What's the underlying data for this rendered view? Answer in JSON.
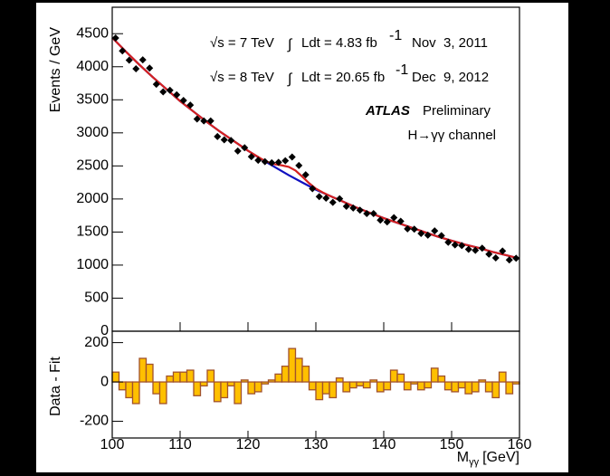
{
  "chart_data": {
    "type": "binned-fit",
    "ylabel": "Events / GeV",
    "ylabel2": "Data - Fit",
    "xlabel": {
      "main": "M",
      "sub": "γγ",
      "unit": "[GeV]"
    },
    "annotations": {
      "row1": {
        "energy": "√s = 7 TeV",
        "integral": "∫",
        "lumi": "Ldt = 4.83 fb",
        "lumi_exp": "-1",
        "date": "Nov  3, 2011"
      },
      "row2": {
        "energy": "√s = 8 TeV",
        "integral": "∫",
        "lumi": "Ldt = 20.65 fb",
        "lumi_exp": "-1",
        "date": "Dec  9, 2012"
      },
      "experiment": "ATLAS",
      "status": "Preliminary",
      "channel": "H→γγ channel"
    },
    "xlim": [
      100,
      160
    ],
    "xticks": [
      100,
      110,
      120,
      130,
      140,
      150,
      160
    ],
    "ylim": [
      0,
      4900
    ],
    "yticks": [
      0,
      500,
      1000,
      1500,
      2000,
      2500,
      3000,
      3500,
      4000,
      4500
    ],
    "y2lim": [
      -285,
      258
    ],
    "y2ticks": [
      -200,
      0,
      200
    ],
    "bins": [
      100,
      101,
      102,
      103,
      104,
      105,
      106,
      107,
      108,
      109,
      110,
      111,
      112,
      113,
      114,
      115,
      116,
      117,
      118,
      119,
      120,
      121,
      122,
      123,
      124,
      125,
      126,
      127,
      128,
      129,
      130,
      131,
      132,
      133,
      134,
      135,
      136,
      137,
      138,
      139,
      140,
      141,
      142,
      143,
      144,
      145,
      146,
      147,
      148,
      149,
      150,
      151,
      152,
      153,
      154,
      155,
      156,
      157,
      158,
      159,
      160
    ],
    "data": {
      "color": "#000000",
      "values": [
        4435,
        4240,
        4100,
        3970,
        4105,
        3980,
        3735,
        3620,
        3645,
        3575,
        3490,
        3420,
        3210,
        3180,
        3180,
        2945,
        2895,
        2885,
        2725,
        2775,
        2640,
        2585,
        2564,
        2548,
        2554,
        2578,
        2635,
        2506,
        2366,
        2156,
        2036,
        2012,
        1948,
        2003,
        1888,
        1863,
        1830,
        1780,
        1780,
        1680,
        1653,
        1718,
        1663,
        1548,
        1543,
        1478,
        1453,
        1518,
        1445,
        1345,
        1305,
        1295,
        1238,
        1223,
        1255,
        1165,
        1108,
        1213,
        1078,
        1103
      ]
    },
    "residuals": {
      "color": "#ffc000",
      "edge_color": "#a0522d",
      "values": [
        50,
        -40,
        -80,
        -110,
        120,
        90,
        -60,
        -110,
        30,
        50,
        50,
        60,
        -70,
        -20,
        60,
        -100,
        -80,
        -20,
        -110,
        10,
        -60,
        -50,
        -10,
        10,
        40,
        80,
        170,
        120,
        80,
        -40,
        -90,
        -60,
        -80,
        20,
        -50,
        -30,
        -20,
        -30,
        10,
        -50,
        -40,
        60,
        40,
        -40,
        -10,
        -40,
        -30,
        70,
        30,
        -40,
        -50,
        -30,
        -60,
        -50,
        10,
        -50,
        -80,
        50,
        -60,
        -10
      ]
    },
    "curves": [
      {
        "color": "#1010c0",
        "x": [
          100,
          102,
          104,
          106,
          108,
          110,
          112,
          114,
          116,
          118,
          120,
          122,
          124,
          126,
          128,
          130,
          132,
          134,
          136,
          138,
          140,
          142,
          144,
          146,
          148,
          150,
          152,
          154,
          156,
          158,
          160
        ],
        "values": [
          4440,
          4230,
          4030,
          3840,
          3660,
          3480,
          3320,
          3160,
          3010,
          2870,
          2730,
          2600,
          2480,
          2360,
          2250,
          2140,
          2050,
          1960,
          1870,
          1790,
          1710,
          1640,
          1570,
          1500,
          1430,
          1370,
          1310,
          1260,
          1200,
          1150,
          1100
        ]
      },
      {
        "color": "#d42020",
        "x": [
          100,
          102,
          104,
          106,
          108,
          110,
          112,
          114,
          116,
          118,
          120,
          122,
          123,
          124,
          125,
          126,
          127,
          128,
          129,
          130,
          131,
          132,
          134,
          136,
          138,
          140,
          142,
          144,
          146,
          148,
          150,
          152,
          154,
          156,
          158,
          160
        ],
        "values": [
          4440,
          4230,
          4030,
          3840,
          3660,
          3480,
          3320,
          3160,
          3010,
          2870,
          2730,
          2604,
          2556,
          2524,
          2508,
          2485,
          2430,
          2338,
          2239,
          2156,
          2099,
          2050,
          1960,
          1870,
          1790,
          1710,
          1640,
          1570,
          1500,
          1430,
          1370,
          1310,
          1260,
          1200,
          1150,
          1100
        ]
      }
    ]
  }
}
